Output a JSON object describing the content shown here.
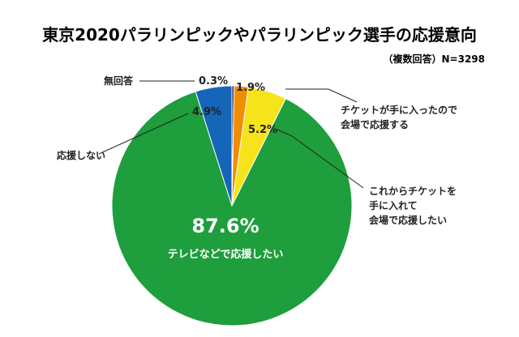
{
  "chart_data": {
    "type": "pie",
    "title": "東京2020パラリンピックやパラリンピック選手の応援意向",
    "note": "（複数回答）N=3298",
    "slices": [
      {
        "label": "無回答",
        "value": 0.3,
        "display": "0.3%",
        "color": "#1a2e6e"
      },
      {
        "label": "チケットが手に入ったので会場で応援する",
        "lines": [
          "チケットが手に入ったので",
          "会場で応援する"
        ],
        "value": 1.9,
        "display": "1.9%",
        "color": "#f28c00"
      },
      {
        "label": "これからチケットを手に入れて会場で応援したい",
        "lines": [
          "これからチケットを",
          "手に入れて",
          "会場で応援したい"
        ],
        "value": 5.2,
        "display": "5.2%",
        "color": "#f7e31b"
      },
      {
        "label": "テレビなどで応援したい",
        "value": 87.6,
        "display": "87.6%",
        "color": "#1e9e3c"
      },
      {
        "label": "応援しない",
        "value": 4.9,
        "display": "4.9%",
        "color": "#1565b8"
      }
    ]
  }
}
